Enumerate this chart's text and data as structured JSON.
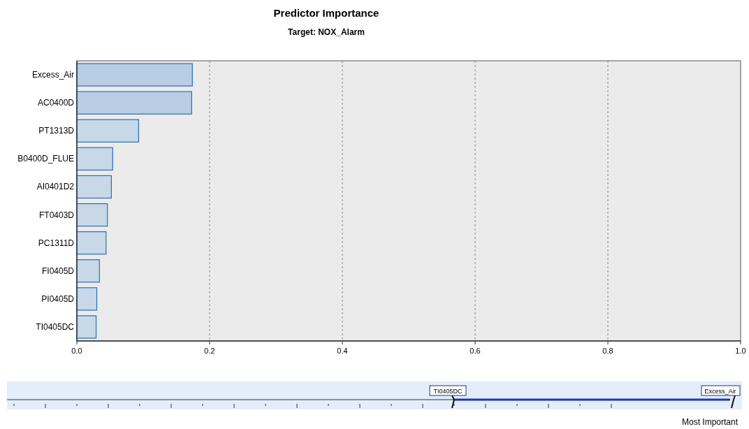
{
  "chart_data": {
    "type": "bar",
    "orientation": "horizontal",
    "title": "Predictor Importance",
    "subtitle": "Target: NOX_Alarm",
    "categories": [
      "Excess_Air",
      "AC0400D",
      "PT1313D",
      "B0400D_FLUE",
      "AI0401D2",
      "FT0403D",
      "PC1311D",
      "FI0405D",
      "PI0405D",
      "TI0405DC"
    ],
    "values": [
      0.174,
      0.173,
      0.093,
      0.054,
      0.052,
      0.046,
      0.044,
      0.034,
      0.03,
      0.029
    ],
    "colors": [
      "#b8cde4",
      "#b8cde4",
      "#c9d8e7",
      "#c9d8e7",
      "#c9d8e7",
      "#c9d8e7",
      "#c9d8e7",
      "#c9d8e7",
      "#c9d8e7",
      "#c9d8e7"
    ],
    "xlim": [
      0,
      1
    ],
    "xticks": [
      {
        "value": 0,
        "label": "0.0"
      },
      0.2,
      0.4,
      0.6,
      0.8,
      {
        "value": 1,
        "label": "1.0"
      }
    ],
    "grid": "x",
    "annotations": [
      "TI0405DC",
      "Excess_Air",
      "Most Important"
    ]
  }
}
